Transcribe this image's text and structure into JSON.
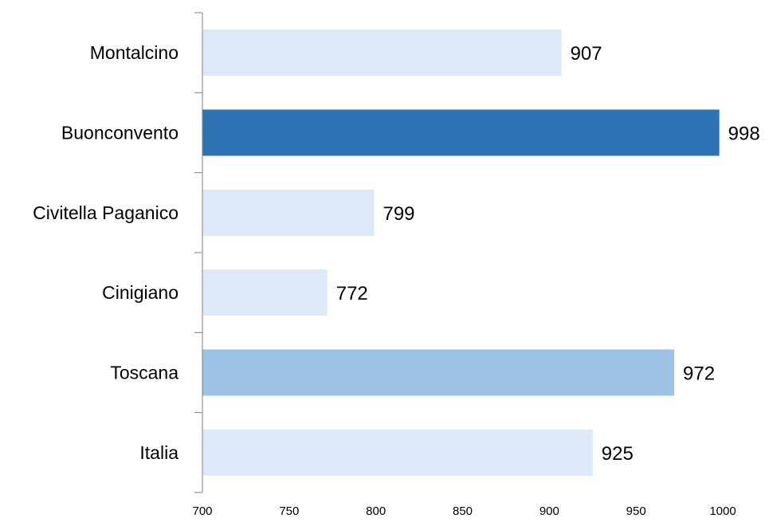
{
  "chart_data": {
    "type": "bar",
    "orientation": "horizontal",
    "title": "",
    "xlabel": "",
    "ylabel": "",
    "categories": [
      "Montalcino",
      "Buonconvento",
      "Civitella Paganico",
      "Cinigiano",
      "Toscana",
      "Italia"
    ],
    "values": [
      907,
      998,
      799,
      772,
      972,
      925
    ],
    "bar_colors": [
      "#dde9f6",
      "#2e74b5",
      "#dde9f6",
      "#dde9f6",
      "#9cc3e6",
      "#dde9f6"
    ],
    "xlim": [
      700,
      1000
    ],
    "x_ticks": [
      700,
      750,
      800,
      850,
      900,
      950,
      1000
    ],
    "grid": false,
    "legend": "none",
    "data_labels": true
  }
}
